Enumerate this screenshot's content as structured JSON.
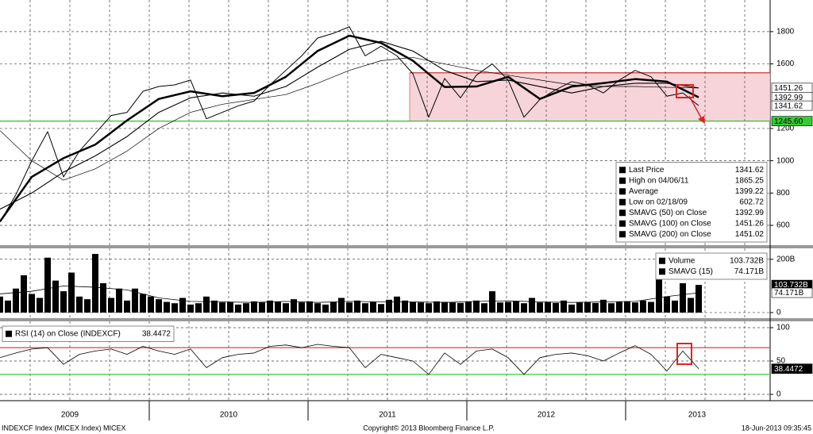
{
  "chart_data": [
    {
      "type": "line",
      "xlim": [
        2009.06,
        2013.91
      ],
      "ylim": [
        477,
        1996
      ],
      "yticks": [
        600,
        800,
        1000,
        1200,
        1600,
        1800
      ],
      "grid": true,
      "xgrid": [
        2009.25,
        2009.5,
        2009.75,
        2010,
        2010.25,
        2010.5,
        2010.75,
        2011,
        2011.25,
        2011.5,
        2011.75,
        2012,
        2012.25,
        2012.5,
        2012.75,
        2013,
        2013.25,
        2013.5,
        2013.75
      ],
      "range_box": {
        "x": [
          2011.64,
          2013.91
        ],
        "y": [
          1245.6,
          1545
        ],
        "color": "#f6ccd4",
        "edge_color": "#cc3333"
      },
      "hlines": [
        {
          "value": 1245.6,
          "color": "#22cc22"
        }
      ],
      "series": [
        {
          "color": "#000000",
          "width": 1,
          "x": [
            2009.06,
            2009.16,
            2009.26,
            2009.36,
            2009.46,
            2009.56,
            2009.66,
            2009.76,
            2009.86,
            2009.96,
            2010.06,
            2010.16,
            2010.26,
            2010.36,
            2010.46,
            2010.56,
            2010.66,
            2010.76,
            2010.86,
            2010.96,
            2011.06,
            2011.16,
            2011.26,
            2011.36,
            2011.46,
            2011.56,
            2011.66,
            2011.76,
            2011.86,
            2011.96,
            2012.06,
            2012.16,
            2012.26,
            2012.36,
            2012.46,
            2012.56,
            2012.66,
            2012.76,
            2012.86,
            2012.96,
            2013.06,
            2013.16,
            2013.26,
            2013.36,
            2013.46
          ],
          "values": [
            620,
            790,
            1000,
            1180,
            900,
            1060,
            1170,
            1280,
            1300,
            1430,
            1460,
            1470,
            1500,
            1260,
            1300,
            1340,
            1370,
            1470,
            1560,
            1650,
            1760,
            1790,
            1830,
            1650,
            1710,
            1650,
            1540,
            1270,
            1510,
            1390,
            1530,
            1600,
            1500,
            1270,
            1380,
            1440,
            1490,
            1470,
            1420,
            1500,
            1560,
            1520,
            1400,
            1420,
            1341.62
          ]
        },
        {
          "color": "#000000",
          "width": 2.5,
          "x": [
            2009.06,
            2009.26,
            2009.46,
            2009.66,
            2009.86,
            2010.06,
            2010.26,
            2010.46,
            2010.66,
            2010.86,
            2011.06,
            2011.26,
            2011.46,
            2011.66,
            2011.86,
            2012.06,
            2012.26,
            2012.46,
            2012.66,
            2012.86,
            2013.06,
            2013.26,
            2013.46
          ],
          "values": [
            624,
            900,
            1016,
            1100,
            1250,
            1383,
            1430,
            1400,
            1420,
            1520,
            1680,
            1775,
            1730,
            1620,
            1457,
            1460,
            1520,
            1383,
            1460,
            1481,
            1506,
            1490,
            1392.99
          ]
        },
        {
          "color": "#000000",
          "width": 1.1,
          "x": [
            2009.06,
            2009.26,
            2009.46,
            2009.66,
            2009.86,
            2010.06,
            2010.26,
            2010.46,
            2010.66,
            2010.86,
            2011.06,
            2011.26,
            2011.46,
            2011.66,
            2011.86,
            2012.06,
            2012.26,
            2012.46,
            2012.66,
            2012.86,
            2013.06,
            2013.26,
            2013.46
          ],
          "values": [
            700,
            800,
            930,
            1030,
            1150,
            1300,
            1390,
            1420,
            1400,
            1460,
            1580,
            1690,
            1740,
            1680,
            1560,
            1490,
            1500,
            1460,
            1420,
            1460,
            1480,
            1480,
            1451.26
          ]
        },
        {
          "color": "#000000",
          "width": 0.7,
          "x": [
            2009.06,
            2009.26,
            2009.46,
            2009.66,
            2009.86,
            2010.06,
            2010.26,
            2010.46,
            2010.66,
            2010.86,
            2011.06,
            2011.26,
            2011.46,
            2011.66,
            2011.86,
            2012.06,
            2012.26,
            2012.46,
            2012.66,
            2012.86,
            2013.06,
            2013.26,
            2013.46
          ],
          "values": [
            1187,
            1000,
            880,
            950,
            1060,
            1200,
            1300,
            1350,
            1380,
            1410,
            1480,
            1560,
            1620,
            1640,
            1600,
            1560,
            1530,
            1500,
            1470,
            1460,
            1460,
            1455,
            1451.02
          ]
        }
      ],
      "tags": [
        {
          "value": 1451.26,
          "label": "1451.26",
          "color": "#ffffff",
          "text_color": "#000000"
        },
        {
          "value": 1392.99,
          "label": "1392.99",
          "color": "#ffffff",
          "text_color": "#000000"
        },
        {
          "value": 1341.62,
          "label": "1341.62",
          "color": "#ffffff",
          "text_color": "#000000"
        },
        {
          "value": 1245.6,
          "label": "1245.60",
          "color": "#33cc33",
          "text_color": "#000000"
        }
      ],
      "legend": {
        "corner": "bottom-right",
        "items": [
          {
            "label": "Last Price",
            "value": 1341.62
          },
          {
            "label": "High on 04/06/11",
            "value": 1865.25
          },
          {
            "label": "Average",
            "value": 1399.22
          },
          {
            "label": "Low on 02/18/09",
            "value": 602.72
          },
          {
            "label": "SMAVG (50) on Close",
            "value": 1392.99
          },
          {
            "label": "SMAVG (100) on Close",
            "value": 1451.26
          },
          {
            "label": "SMAVG (200) on Close",
            "value": 1451.02
          }
        ]
      }
    },
    {
      "type": "bar",
      "xlim": [
        2009.06,
        2013.91
      ],
      "ylim": [
        -21,
        241
      ],
      "yticks": [
        {
          "value": 200,
          "label": "200B"
        },
        0
      ],
      "grid": true,
      "series": [
        {
          "type": "bar",
          "color": "#000000",
          "x": [
            2009.06,
            2009.11,
            2009.16,
            2009.21,
            2009.26,
            2009.31,
            2009.36,
            2009.41,
            2009.46,
            2009.51,
            2009.56,
            2009.61,
            2009.66,
            2009.71,
            2009.76,
            2009.81,
            2009.86,
            2009.91,
            2009.96,
            2010.01,
            2010.06,
            2010.11,
            2010.16,
            2010.21,
            2010.26,
            2010.31,
            2010.36,
            2010.41,
            2010.46,
            2010.51,
            2010.56,
            2010.61,
            2010.66,
            2010.71,
            2010.76,
            2010.81,
            2010.86,
            2010.91,
            2010.96,
            2011.01,
            2011.06,
            2011.11,
            2011.16,
            2011.21,
            2011.26,
            2011.31,
            2011.36,
            2011.41,
            2011.46,
            2011.51,
            2011.56,
            2011.61,
            2011.66,
            2011.71,
            2011.76,
            2011.81,
            2011.86,
            2011.91,
            2011.96,
            2012.01,
            2012.06,
            2012.11,
            2012.16,
            2012.21,
            2012.26,
            2012.31,
            2012.36,
            2012.41,
            2012.46,
            2012.51,
            2012.56,
            2012.61,
            2012.66,
            2012.71,
            2012.76,
            2012.81,
            2012.86,
            2012.91,
            2012.96,
            2013.01,
            2013.06,
            2013.11,
            2013.16,
            2013.21,
            2013.26,
            2013.31,
            2013.36,
            2013.41,
            2013.46
          ],
          "values": [
            60,
            45,
            90,
            140,
            70,
            55,
            206,
            120,
            80,
            150,
            60,
            50,
            220,
            110,
            55,
            90,
            45,
            90,
            70,
            60,
            50,
            40,
            35,
            55,
            30,
            35,
            60,
            45,
            38,
            40,
            30,
            35,
            42,
            38,
            45,
            40,
            35,
            50,
            38,
            42,
            35,
            30,
            40,
            55,
            38,
            45,
            35,
            40,
            32,
            48,
            60,
            45,
            40,
            38,
            35,
            42,
            40,
            38,
            36,
            40,
            45,
            35,
            80,
            38,
            40,
            42,
            35,
            55,
            38,
            40,
            36,
            45,
            30,
            38,
            40,
            36,
            48,
            35,
            40,
            42,
            38,
            45,
            40,
            150,
            60,
            45,
            110,
            55,
            103.732
          ]
        },
        {
          "type": "line",
          "color": "#000000",
          "width": 0.8,
          "x": [
            2009.06,
            2009.26,
            2009.46,
            2009.66,
            2009.86,
            2010.06,
            2010.26,
            2010.46,
            2010.66,
            2010.86,
            2011.06,
            2011.26,
            2011.46,
            2011.66,
            2011.86,
            2012.06,
            2012.26,
            2012.46,
            2012.66,
            2012.86,
            2013.06,
            2013.26,
            2013.46
          ],
          "values": [
            70,
            80,
            100,
            95,
            85,
            55,
            42,
            40,
            38,
            42,
            38,
            42,
            40,
            40,
            38,
            42,
            44,
            40,
            38,
            40,
            42,
            60,
            74.171
          ]
        }
      ],
      "tags": [
        {
          "value": 103.732,
          "label": "103.732B",
          "color": "#000000",
          "text_color": "#ffffff"
        },
        {
          "value": 74.171,
          "label": "74.171B",
          "color": "#ffffff",
          "text_color": "#000000"
        }
      ],
      "legend": {
        "corner": "top-right",
        "items": [
          {
            "label": "Volume",
            "value": "103.732B"
          },
          {
            "label": "SMAVG (15)",
            "value": "74.171B"
          }
        ]
      }
    },
    {
      "type": "line",
      "xlim": [
        2009.06,
        2013.91
      ],
      "ylim": [
        -9.5,
        109.5
      ],
      "yticks": [
        0,
        50,
        100
      ],
      "grid": true,
      "hlines": [
        {
          "value": 70,
          "color": "#cc3333"
        },
        {
          "value": 30,
          "color": "#22cc22"
        }
      ],
      "series": [
        {
          "color": "#000000",
          "width": 0.8,
          "x": [
            2009.06,
            2009.16,
            2009.26,
            2009.36,
            2009.46,
            2009.56,
            2009.66,
            2009.76,
            2009.86,
            2009.96,
            2010.06,
            2010.16,
            2010.26,
            2010.36,
            2010.46,
            2010.56,
            2010.66,
            2010.76,
            2010.86,
            2010.96,
            2011.06,
            2011.16,
            2011.26,
            2011.36,
            2011.46,
            2011.56,
            2011.66,
            2011.76,
            2011.86,
            2011.96,
            2012.06,
            2012.16,
            2012.26,
            2012.36,
            2012.46,
            2012.56,
            2012.66,
            2012.76,
            2012.86,
            2012.96,
            2013.06,
            2013.16,
            2013.26,
            2013.36,
            2013.46
          ],
          "values": [
            55,
            62,
            68,
            70,
            45,
            60,
            65,
            68,
            60,
            72,
            65,
            60,
            68,
            40,
            55,
            60,
            62,
            72,
            74,
            70,
            75,
            72,
            70,
            40,
            60,
            55,
            50,
            30,
            62,
            45,
            65,
            68,
            55,
            30,
            55,
            60,
            62,
            58,
            50,
            62,
            73,
            60,
            35,
            65,
            38.4472
          ]
        }
      ],
      "tags": [
        {
          "value": 38.4472,
          "label": "38.4472",
          "color": "#000000",
          "text_color": "#ffffff"
        }
      ],
      "legend": {
        "corner": "top-left",
        "items": [
          {
            "label": "RSI (14) on Close (INDEXCF)",
            "value": 38.4472
          }
        ]
      },
      "xticks": [
        {
          "value": 2009.5,
          "label": "2009"
        },
        {
          "value": 2010.5,
          "label": "2010"
        },
        {
          "value": 2011.5,
          "label": "2011"
        },
        {
          "value": 2012.5,
          "label": "2012"
        },
        {
          "value": 2013.45,
          "label": "2013"
        }
      ],
      "xdividers": [
        2010,
        2011,
        2012,
        2013
      ]
    }
  ],
  "footer": {
    "left": "INDEXCF Index (MICEX Index) MICEX",
    "center": "Copyright© 2013 Bloomberg Finance L.P.",
    "right": "18-Jun-2013 09:35:45"
  }
}
